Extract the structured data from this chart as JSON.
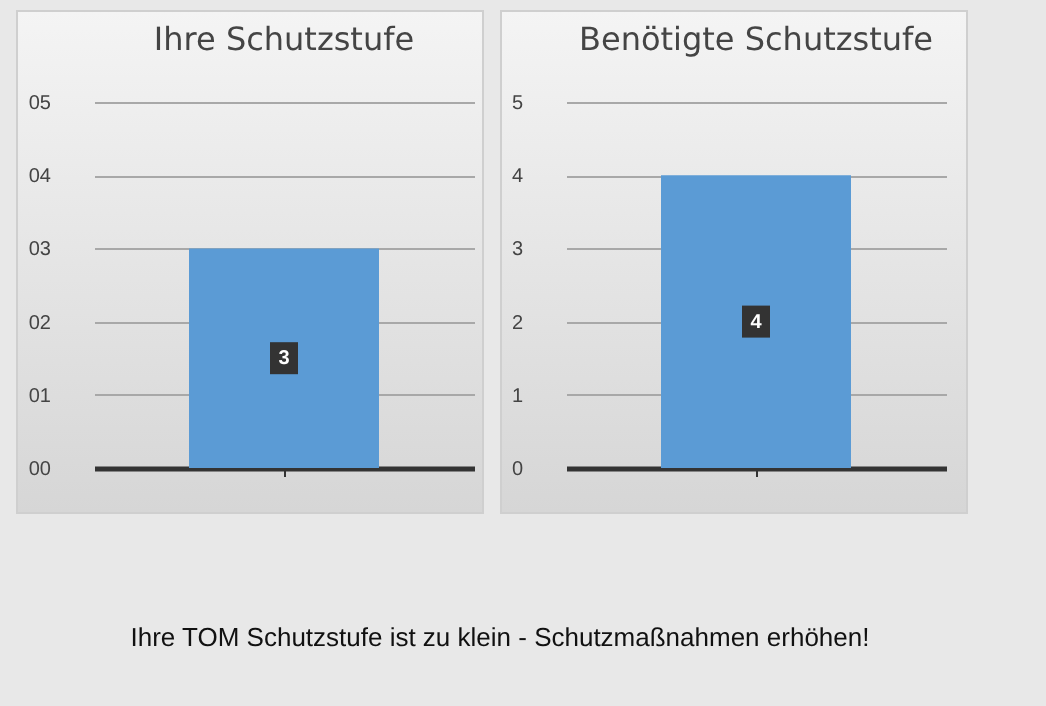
{
  "chart_data": [
    {
      "type": "bar",
      "title": "Ihre Schutzstufe",
      "categories": [
        null
      ],
      "values": [
        3
      ],
      "color": "#5b9bd5",
      "ylim": [
        0,
        5
      ],
      "yticks": [
        {
          "value": 0,
          "label": "00"
        },
        {
          "value": 1,
          "label": "01"
        },
        {
          "value": 2,
          "label": "02"
        },
        {
          "value": 3,
          "label": "03"
        },
        {
          "value": 4,
          "label": "04"
        },
        {
          "value": 5,
          "label": "05"
        }
      ],
      "grid": "y",
      "data_labels": true,
      "annotations": [
        "Ihre TOM Schutzstufe ist zu klein - Schutzmaßnahmen erhöhen!"
      ]
    },
    {
      "type": "bar",
      "title": "Benötigte Schutzstufe",
      "categories": [
        null
      ],
      "values": [
        4
      ],
      "color": "#5b9bd5",
      "ylim": [
        0,
        5
      ],
      "yticks": [
        0,
        1,
        2,
        3,
        4,
        5
      ],
      "grid": "y",
      "data_labels": true
    }
  ]
}
